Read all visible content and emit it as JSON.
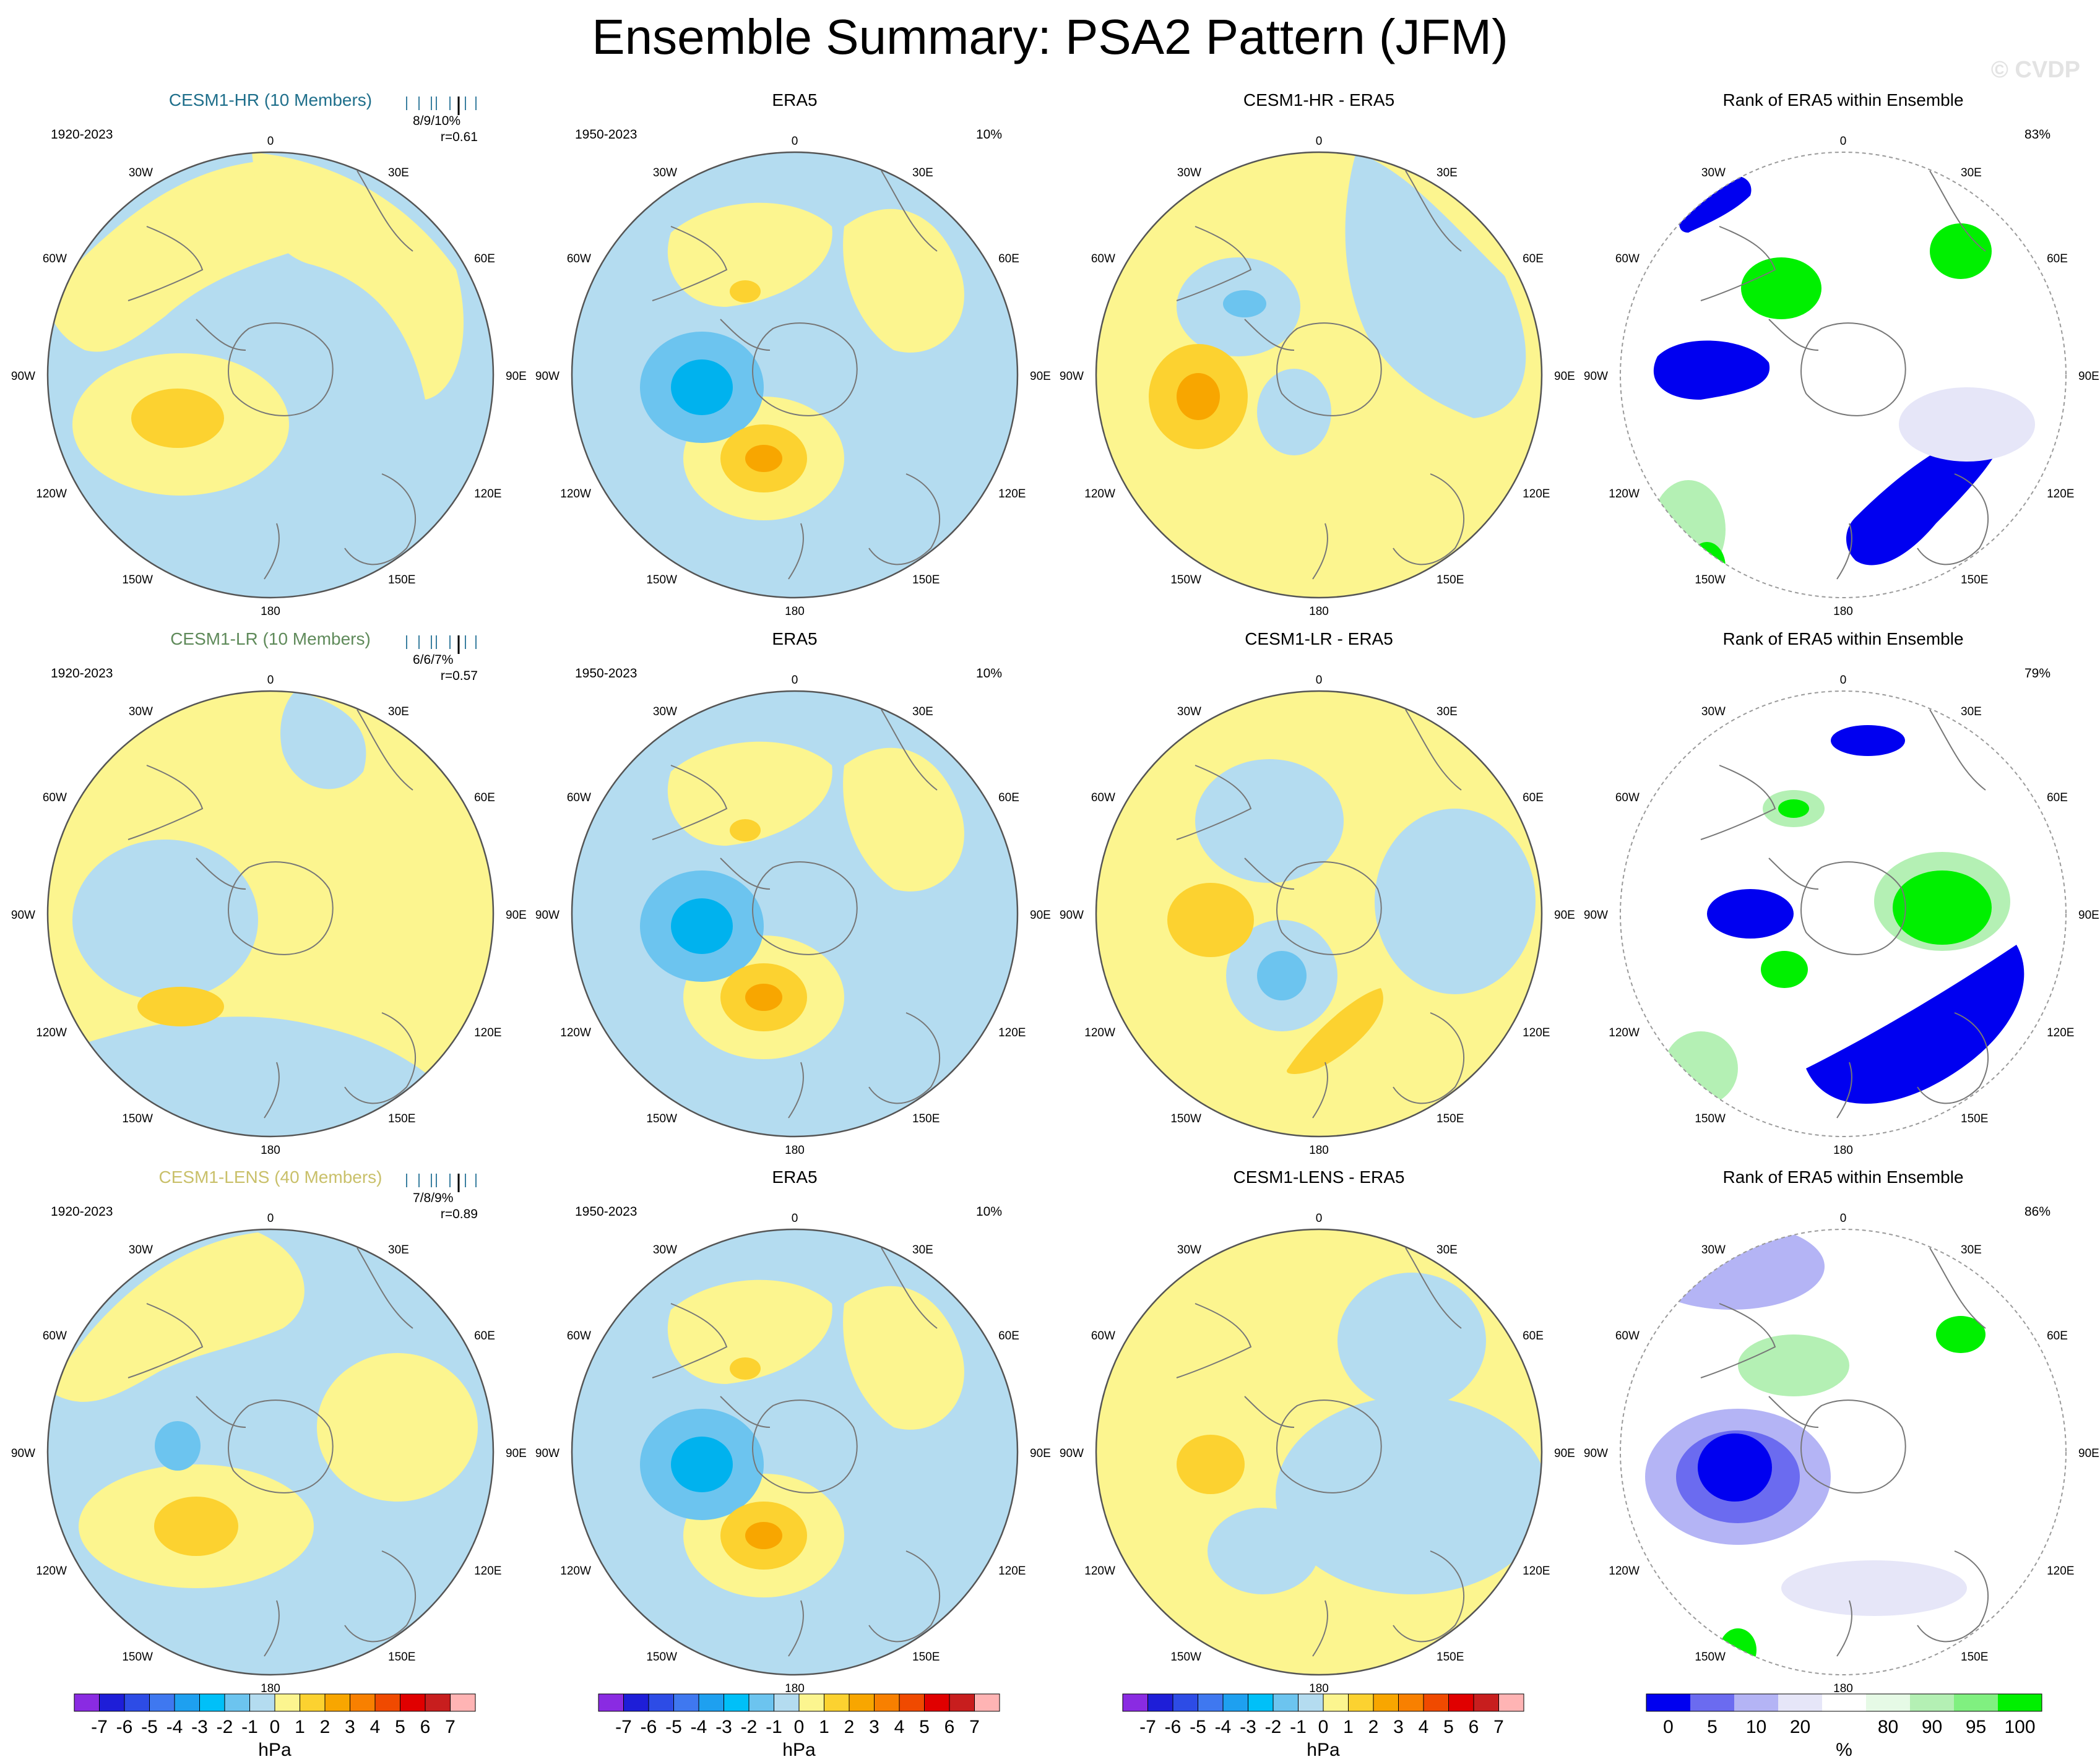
{
  "title": "Ensemble Summary: PSA2 Pattern (JFM)",
  "watermark": "© CVDP",
  "colors": {
    "neg_lt1": "#b4dcf0",
    "neg_1_2": "#6cc4ef",
    "neg_2_3": "#00b2ee",
    "pos_lt1": "#fcf58f",
    "pos_1_2": "#fcd230",
    "pos_2_3": "#f8a600",
    "land": "#777777",
    "hr_title": "#1f6f8b",
    "lr_title": "#5f8a5a",
    "lens_title": "#c9c06a",
    "rank_0_5": "#0000f0",
    "rank_5_10": "#6b6bf0",
    "rank_10_20": "#b4b4f5",
    "rank_20_80_low": "#e6e6f8",
    "rank_80_90": "#e6fae6",
    "rank_90_95": "#b4f0b4",
    "rank_95_100": "#00f000"
  },
  "lon_labels": [
    "0",
    "30E",
    "60E",
    "90E",
    "120E",
    "150E",
    "180",
    "150W",
    "120W",
    "90W",
    "60W",
    "30W"
  ],
  "rows": [
    {
      "ensemble": {
        "title": "CESM1-HR (10 Members)",
        "period": "1920-2023",
        "stats": "8/9/10%",
        "r": "r=0.61"
      },
      "obs": {
        "title": "ERA5",
        "period": "1950-2023",
        "pct": "10%"
      },
      "diff": {
        "title": "CESM1-HR - ERA5"
      },
      "rank": {
        "title": "Rank of ERA5 within Ensemble",
        "pct": "83%"
      }
    },
    {
      "ensemble": {
        "title": "CESM1-LR (10 Members)",
        "period": "1920-2023",
        "stats": "6/6/7%",
        "r": "r=0.57"
      },
      "obs": {
        "title": "ERA5",
        "period": "1950-2023",
        "pct": "10%"
      },
      "diff": {
        "title": "CESM1-LR - ERA5"
      },
      "rank": {
        "title": "Rank of ERA5 within Ensemble",
        "pct": "79%"
      }
    },
    {
      "ensemble": {
        "title": "CESM1-LENS (40 Members)",
        "period": "1920-2023",
        "stats": "7/8/9%",
        "r": "r=0.89"
      },
      "obs": {
        "title": "ERA5",
        "period": "1950-2023",
        "pct": "10%"
      },
      "diff": {
        "title": "CESM1-LENS - ERA5"
      },
      "rank": {
        "title": "Rank of ERA5 within Ensemble",
        "pct": "86%"
      }
    }
  ],
  "chart_data": {
    "type": "heatmap",
    "projection": "south-polar stereographic",
    "panel_types": [
      "ensemble-mean pattern",
      "observed pattern",
      "difference",
      "percentile rank"
    ],
    "hpa_colorbar": {
      "label": "hPa",
      "ticks": [
        "-7",
        "-6",
        "-5",
        "-4",
        "-3",
        "-2",
        "-1",
        "0",
        "1",
        "2",
        "3",
        "4",
        "5",
        "6",
        "7"
      ],
      "colors": [
        "#8a2be2",
        "#1e1ed8",
        "#2d4ce6",
        "#3f78f0",
        "#1ea0f0",
        "#00c0f8",
        "#6cc4ef",
        "#b4dcf0",
        "#fcf58f",
        "#fcd230",
        "#f8a600",
        "#f88000",
        "#f04a00",
        "#e00000",
        "#c81e1e",
        "#ffb4b4"
      ]
    },
    "rank_colorbar": {
      "label": "%",
      "ticks": [
        "0",
        "5",
        "10",
        "20",
        "80",
        "90",
        "95",
        "100"
      ],
      "colors": [
        "#0000f0",
        "#6b6bf0",
        "#b4b4f5",
        "#e6e6f8",
        "#ffffff",
        "#e6fae6",
        "#b4f0b4",
        "#80f080",
        "#00f000"
      ]
    },
    "rows": [
      {
        "model": "CESM1-HR",
        "ensemble_members": 10,
        "pattern_stats": "8/9/10%",
        "pattern_correlation": 0.61,
        "obs_variance_pct": 10,
        "rank_within_pct": 83
      },
      {
        "model": "CESM1-LR",
        "ensemble_members": 10,
        "pattern_stats": "6/6/7%",
        "pattern_correlation": 0.57,
        "obs_variance_pct": 10,
        "rank_within_pct": 79
      },
      {
        "model": "CESM1-LENS",
        "ensemble_members": 40,
        "pattern_stats": "7/8/9%",
        "pattern_correlation": 0.89,
        "obs_variance_pct": 10,
        "rank_within_pct": 86
      }
    ]
  }
}
